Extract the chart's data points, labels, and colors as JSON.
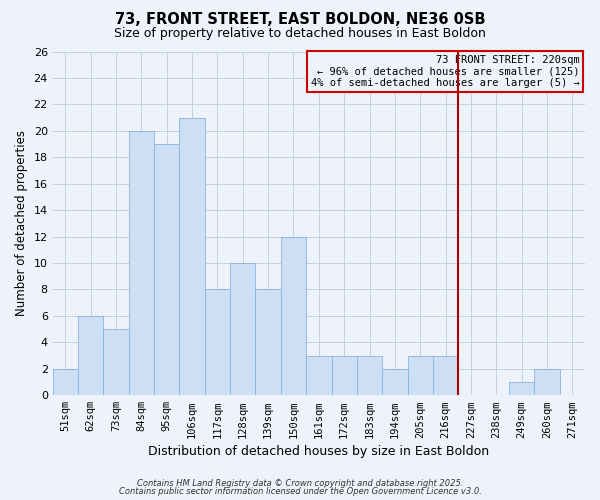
{
  "title": "73, FRONT STREET, EAST BOLDON, NE36 0SB",
  "subtitle": "Size of property relative to detached houses in East Boldon",
  "xlabel": "Distribution of detached houses by size in East Boldon",
  "ylabel": "Number of detached properties",
  "categories": [
    "51sqm",
    "62sqm",
    "73sqm",
    "84sqm",
    "95sqm",
    "106sqm",
    "117sqm",
    "128sqm",
    "139sqm",
    "150sqm",
    "161sqm",
    "172sqm",
    "183sqm",
    "194sqm",
    "205sqm",
    "216sqm",
    "227sqm",
    "238sqm",
    "249sqm",
    "260sqm",
    "271sqm"
  ],
  "values": [
    2,
    6,
    5,
    20,
    19,
    21,
    8,
    10,
    8,
    12,
    3,
    3,
    3,
    2,
    3,
    3,
    0,
    0,
    1,
    2,
    0
  ],
  "bar_color": "#ccdff5",
  "bar_edge_color": "#8ab4d8",
  "grid_color": "#c0d0e0",
  "background_color": "#eef2fa",
  "vline_x_index": 15.5,
  "vline_color": "#aa0000",
  "annotation_line1": "73 FRONT STREET: 220sqm",
  "annotation_line2": "← 96% of detached houses are smaller (125)",
  "annotation_line3": "4% of semi-detached houses are larger (5) →",
  "annotation_box_color": "#cc0000",
  "ylim": [
    0,
    26
  ],
  "yticks": [
    0,
    2,
    4,
    6,
    8,
    10,
    12,
    14,
    16,
    18,
    20,
    22,
    24,
    26
  ],
  "footnote1": "Contains HM Land Registry data © Crown copyright and database right 2025.",
  "footnote2": "Contains public sector information licensed under the Open Government Licence v3.0.",
  "title_fontsize": 10.5,
  "subtitle_fontsize": 9,
  "xlabel_fontsize": 9,
  "ylabel_fontsize": 8.5,
  "tick_fontsize": 7.5,
  "ytick_fontsize": 8
}
